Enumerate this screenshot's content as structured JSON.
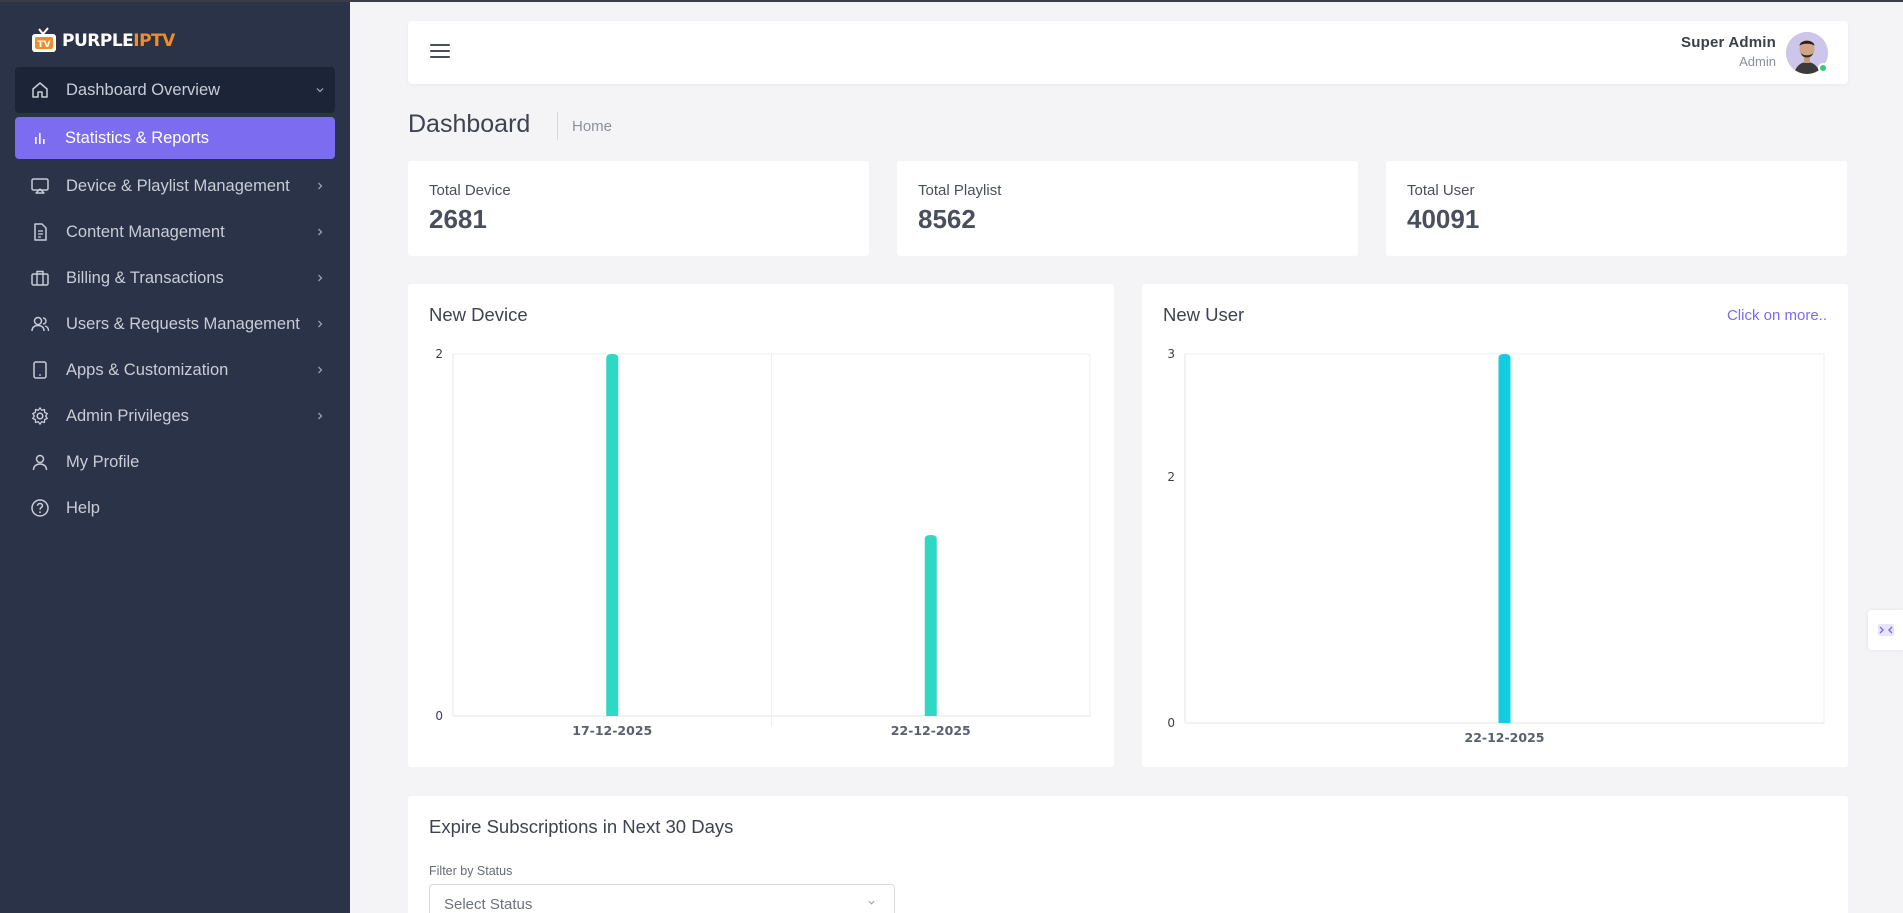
{
  "app": {
    "logo_part1": "PURPLE",
    "logo_part2": "IPTV",
    "accent_color": "#7b6cf0",
    "logo_color": "#f28c28"
  },
  "sidebar": {
    "items": [
      {
        "label": "Dashboard Overview",
        "icon": "home-icon"
      },
      {
        "label": "Statistics & Reports",
        "icon": "bar-chart-icon"
      },
      {
        "label": "Device & Playlist Management",
        "icon": "monitor-icon"
      },
      {
        "label": "Content Management",
        "icon": "document-icon"
      },
      {
        "label": "Billing & Transactions",
        "icon": "briefcase-icon"
      },
      {
        "label": "Users & Requests Management",
        "icon": "users-icon"
      },
      {
        "label": "Apps & Customization",
        "icon": "tablet-icon"
      },
      {
        "label": "Admin Privileges",
        "icon": "gear-icon"
      },
      {
        "label": "My Profile",
        "icon": "user-icon"
      },
      {
        "label": "Help",
        "icon": "help-icon"
      }
    ]
  },
  "header": {
    "user_name": "Super Admin",
    "user_role": "Admin"
  },
  "page": {
    "title": "Dashboard",
    "breadcrumb": "Home"
  },
  "stats": [
    {
      "label": "Total Device",
      "value": "2681"
    },
    {
      "label": "Total Playlist",
      "value": "8562"
    },
    {
      "label": "Total User",
      "value": "40091"
    }
  ],
  "charts": {
    "new_device": {
      "title": "New Device"
    },
    "new_user": {
      "title": "New User",
      "link": "Click on more.."
    }
  },
  "chart_data": [
    {
      "type": "bar",
      "title": "New Device",
      "categories": [
        "17-12-2025",
        "22-12-2025"
      ],
      "values": [
        2,
        1
      ],
      "ylim": [
        0,
        2
      ],
      "yticks": [
        "2",
        "0"
      ],
      "color": "#2ed8c3",
      "grid": true
    },
    {
      "type": "bar",
      "title": "New User",
      "categories": [
        "22-12-2025"
      ],
      "values": [
        3
      ],
      "ylim": [
        0,
        3
      ],
      "yticks": [
        "3",
        "2",
        "0"
      ],
      "color": "#12cde0",
      "grid": true
    }
  ],
  "expire": {
    "title": "Expire Subscriptions in Next 30 Days",
    "filter_label": "Filter by Status",
    "select_placeholder": "Select Status"
  }
}
